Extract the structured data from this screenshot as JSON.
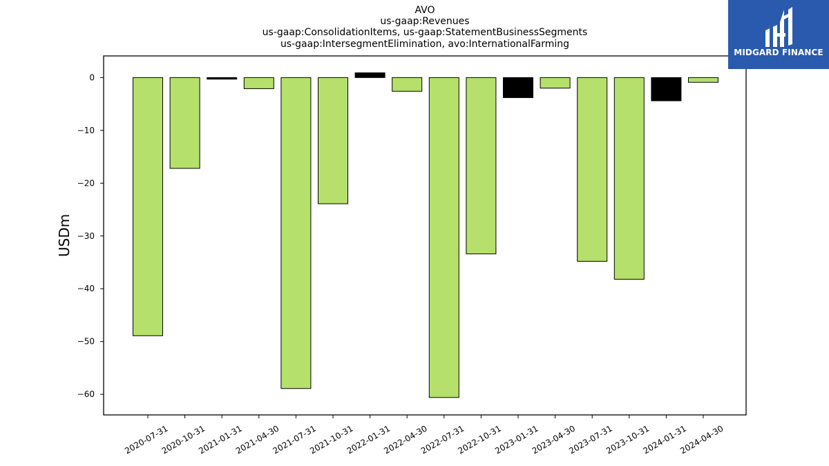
{
  "chart_data": {
    "type": "bar",
    "title_lines": [
      "AVO",
      "us-gaap:Revenues",
      "us-gaap:ConsolidationItems, us-gaap:StatementBusinessSegments",
      "us-gaap:IntersegmentElimination, avo:InternationalFarming"
    ],
    "ylabel": "USDm",
    "xlabel": "",
    "categories": [
      "2020-07-31",
      "2020-10-31",
      "2021-01-31",
      "2021-04-30",
      "2021-07-31",
      "2021-10-31",
      "2022-01-31",
      "2022-04-30",
      "2022-07-31",
      "2022-10-31",
      "2023-01-31",
      "2023-04-30",
      "2023-07-31",
      "2023-10-31",
      "2024-01-31",
      "2024-04-30"
    ],
    "values": [
      -48.9,
      -17.2,
      -0.3,
      -2.1,
      -58.9,
      -23.9,
      0.9,
      -2.6,
      -60.6,
      -33.4,
      -3.8,
      -2.0,
      -34.8,
      -38.2,
      -4.4,
      -0.9
    ],
    "bar_colors": [
      "#b5e06b",
      "#b5e06b",
      "#000000",
      "#b5e06b",
      "#b5e06b",
      "#b5e06b",
      "#000000",
      "#b5e06b",
      "#b5e06b",
      "#b5e06b",
      "#000000",
      "#b5e06b",
      "#b5e06b",
      "#b5e06b",
      "#000000",
      "#b5e06b"
    ],
    "yticks": [
      0,
      -10,
      -20,
      -30,
      -40,
      -50,
      -60
    ],
    "ylim": [
      -63.9,
      4.1
    ],
    "grid": false,
    "legend": "none"
  },
  "logo": {
    "text": "MIDGARD FINANCE"
  },
  "colors": {
    "bar_green": "#b5e06b",
    "bar_black": "#000000",
    "logo_bg": "#2a5aad"
  }
}
